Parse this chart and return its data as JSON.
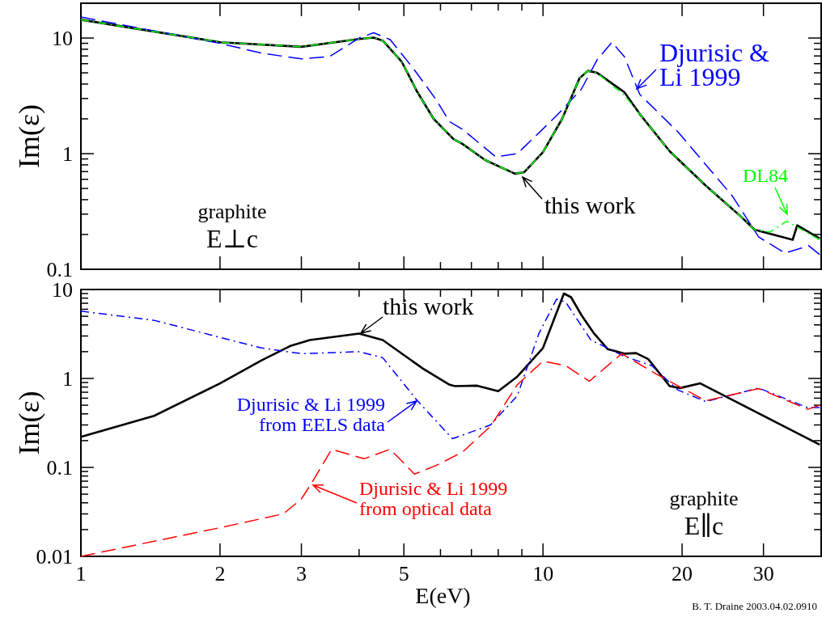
{
  "chart_data": [
    {
      "type": "line",
      "ylabel": "Im(ε)",
      "log": "xy",
      "grid": false,
      "legend": "top right",
      "tick_labels": "y",
      "xlim": [
        1,
        40
      ],
      "ylim": [
        0.1,
        20
      ],
      "xticks": [
        1,
        2,
        3,
        {
          "value": 4,
          "label": null
        },
        5,
        {
          "value": 6,
          "label": null
        },
        {
          "value": 7,
          "label": null
        },
        {
          "value": 8,
          "label": null
        },
        {
          "value": 9,
          "label": null
        },
        10,
        20,
        30,
        {
          "value": 40,
          "label": null
        }
      ],
      "yticks": [
        0.1,
        {
          "value": 0.2,
          "label": null
        },
        {
          "value": 0.3,
          "label": null
        },
        {
          "value": 0.4,
          "label": null
        },
        {
          "value": 0.5,
          "label": null
        },
        {
          "value": 0.6,
          "label": null
        },
        {
          "value": 0.7,
          "label": null
        },
        {
          "value": 0.8,
          "label": null
        },
        {
          "value": 0.9,
          "label": null
        },
        1,
        {
          "value": 2,
          "label": null
        },
        {
          "value": 3,
          "label": null
        },
        {
          "value": 4,
          "label": null
        },
        {
          "value": 5,
          "label": null
        },
        {
          "value": 6,
          "label": null
        },
        {
          "value": 7,
          "label": null
        },
        {
          "value": 8,
          "label": null
        },
        {
          "value": 9,
          "label": null
        },
        10,
        {
          "value": 20,
          "label": null
        }
      ],
      "annotations": [
        "graphite\nE⊥c"
      ],
      "series": [
        {
          "name": "this work",
          "color": "#000000",
          "line_style": "solid",
          "x": [
            1,
            2,
            3,
            4,
            4.3,
            4.5,
            4.95,
            5.35,
            5.8,
            6.4,
            6.7,
            7.5,
            8.7,
            9.1,
            10,
            11,
            12,
            12.5,
            13.1,
            15,
            16.2,
            18.8,
            22.5,
            26.7,
            28.7,
            34.7,
            35.5,
            39.7
          ],
          "values": [
            14.4,
            9.2,
            8.4,
            9.8,
            10.1,
            9.5,
            6.2,
            3.4,
            2.0,
            1.34,
            1.21,
            0.88,
            0.67,
            0.69,
            1.03,
            2.0,
            4.5,
            5.2,
            5.0,
            3.4,
            2.2,
            1.05,
            0.53,
            0.29,
            0.22,
            0.18,
            0.24,
            0.185
          ]
        },
        {
          "name": "Djurisic &\nLi 1999",
          "color": "#0000ff",
          "line_style": "dashed",
          "x": [
            1,
            2,
            2.46,
            3,
            3.45,
            4,
            4.3,
            4.67,
            5.27,
            5.87,
            6.27,
            6.7,
            7.9,
            8.8,
            10.7,
            12.1,
            13.1,
            14.1,
            15,
            16.2,
            19.6,
            25.7,
            29.3,
            33.4,
            37.6,
            39.7
          ],
          "values": [
            15.2,
            9.0,
            7.4,
            6.6,
            6.9,
            10.0,
            11.1,
            9.7,
            5.3,
            2.93,
            1.9,
            1.62,
            0.94,
            1.0,
            2.13,
            3.6,
            6.5,
            9.2,
            6.9,
            3.25,
            1.54,
            0.43,
            0.19,
            0.138,
            0.16,
            0.134
          ]
        },
        {
          "name": "DL84",
          "color": "#00ff00",
          "line_style": "dashdot",
          "x": [
            1,
            2,
            3,
            4,
            4.3,
            4.5,
            4.95,
            5.35,
            5.8,
            6.4,
            6.7,
            7.5,
            8.7,
            9.1,
            10,
            11,
            12,
            12.5,
            13.1,
            13.8,
            15,
            16.2,
            18.8,
            22.5,
            26.7,
            28.7,
            31,
            33.7,
            39.7
          ],
          "values": [
            14.4,
            9.2,
            8.4,
            9.8,
            10.1,
            9.5,
            6.2,
            3.4,
            2.0,
            1.34,
            1.21,
            0.88,
            0.67,
            0.69,
            1.03,
            2.0,
            4.5,
            5.2,
            5.0,
            4.2,
            3.2,
            2.2,
            1.05,
            0.53,
            0.29,
            0.22,
            0.21,
            0.26,
            0.18
          ]
        }
      ]
    },
    {
      "type": "line",
      "xlabel": "E(eV)",
      "ylabel": "Im(ε)",
      "log": "xy",
      "grid": false,
      "legend": "top left",
      "xlim": [
        1,
        40
      ],
      "ylim": [
        0.01,
        10
      ],
      "xticks": [
        1,
        2,
        3,
        {
          "value": 4,
          "label": null
        },
        5,
        {
          "value": 6,
          "label": null
        },
        {
          "value": 7,
          "label": null
        },
        {
          "value": 8,
          "label": null
        },
        {
          "value": 9,
          "label": null
        },
        10,
        20,
        30,
        {
          "value": 40,
          "label": null
        }
      ],
      "yticks": [
        0.01,
        {
          "value": 0.02,
          "label": null
        },
        {
          "value": 0.03,
          "label": null
        },
        {
          "value": 0.04,
          "label": null
        },
        {
          "value": 0.05,
          "label": null
        },
        {
          "value": 0.06,
          "label": null
        },
        {
          "value": 0.07,
          "label": null
        },
        {
          "value": 0.08,
          "label": null
        },
        {
          "value": 0.09,
          "label": null
        },
        0.1,
        {
          "value": 0.2,
          "label": null
        },
        {
          "value": 0.3,
          "label": null
        },
        {
          "value": 0.4,
          "label": null
        },
        {
          "value": 0.5,
          "label": null
        },
        {
          "value": 0.6,
          "label": null
        },
        {
          "value": 0.7,
          "label": null
        },
        {
          "value": 0.8,
          "label": null
        },
        {
          "value": 0.9,
          "label": null
        },
        1,
        {
          "value": 2,
          "label": null
        },
        {
          "value": 3,
          "label": null
        },
        {
          "value": 4,
          "label": null
        },
        {
          "value": 5,
          "label": null
        },
        {
          "value": 6,
          "label": null
        },
        {
          "value": 7,
          "label": null
        },
        {
          "value": 8,
          "label": null
        },
        {
          "value": 9,
          "label": null
        },
        10
      ],
      "annotations": [
        "graphite\nE∥c",
        "B. T. Draine 2003.04.02.0910"
      ],
      "series": [
        {
          "name": "this work",
          "color": "#000000",
          "line_style": "solid",
          "x": [
            1,
            1.44,
            2,
            2.46,
            2.85,
            3.13,
            4,
            4.5,
            5.5,
            6.28,
            6.45,
            7.2,
            8,
            8.8,
            10,
            11.1,
            11.5,
            12.1,
            12.9,
            13.8,
            15,
            15.9,
            16.9,
            18.8,
            19.8,
            21.9,
            39.7
          ],
          "values": [
            0.22,
            0.38,
            0.88,
            1.6,
            2.34,
            2.7,
            3.2,
            2.7,
            1.29,
            0.85,
            0.82,
            0.83,
            0.72,
            1.05,
            2.2,
            9.0,
            8.2,
            5.2,
            3.2,
            2.14,
            1.9,
            1.93,
            1.65,
            0.82,
            0.78,
            0.88,
            0.18
          ]
        },
        {
          "name": "Djurisic & Li 1999\nfrom EELS data",
          "color": "#0000ff",
          "line_style": "dashdot",
          "x": [
            1,
            1.44,
            2,
            2.46,
            3,
            4,
            4.5,
            5.35,
            6.37,
            7.7,
            8.8,
            9.8,
            10.7,
            11.2,
            12.7,
            15,
            17.2,
            19.6,
            22.5,
            29.3,
            37.4,
            39.7
          ],
          "values": [
            5.7,
            4.5,
            2.9,
            2.2,
            1.9,
            2.0,
            1.71,
            0.56,
            0.21,
            0.3,
            0.64,
            3.2,
            7.8,
            7.2,
            2.7,
            1.77,
            1.39,
            0.74,
            0.55,
            0.78,
            0.47,
            0.47
          ]
        },
        {
          "name": "Djurisic & Li 1999\nfrom optical data",
          "color": "#ff0000",
          "line_style": "dashed",
          "x": [
            1,
            2,
            2.74,
            3,
            3.17,
            3.49,
            4.1,
            4.67,
            5.27,
            5.87,
            6.7,
            7.7,
            8.8,
            10,
            11.2,
            12.6,
            14.8,
            17.6,
            22.5,
            29.3,
            37.4,
            39.7
          ],
          "values": [
            0.01,
            0.021,
            0.03,
            0.044,
            0.069,
            0.16,
            0.125,
            0.16,
            0.084,
            0.105,
            0.149,
            0.29,
            0.85,
            1.57,
            1.39,
            0.93,
            1.9,
            1.12,
            0.56,
            0.77,
            0.45,
            0.5
          ]
        }
      ]
    }
  ]
}
